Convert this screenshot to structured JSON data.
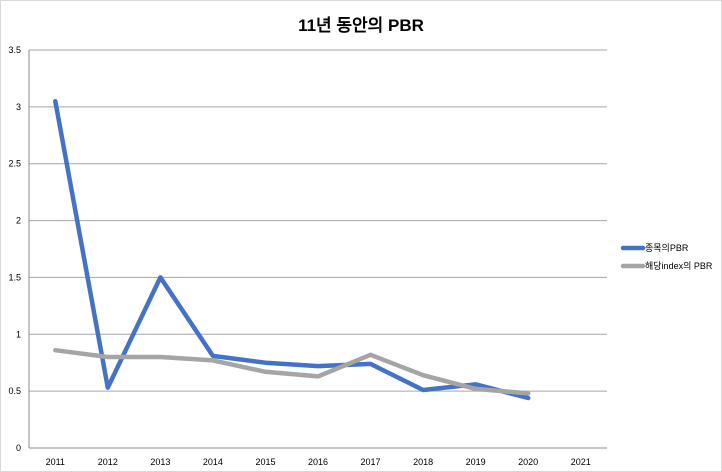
{
  "chart_data": {
    "type": "line",
    "title": "11년 동안의 PBR",
    "xlabel": "",
    "ylabel": "",
    "categories": [
      "2011",
      "2012",
      "2013",
      "2014",
      "2015",
      "2016",
      "2017",
      "2018",
      "2019",
      "2020",
      "2021"
    ],
    "y_ticks": [
      "0",
      "0.5",
      "1",
      "1.5",
      "2",
      "2.5",
      "3",
      "3.5"
    ],
    "ylim": [
      0,
      3.5
    ],
    "grid": "horizontal",
    "legend_position": "right",
    "series": [
      {
        "name": "종목의PBR",
        "color": "#4472c4",
        "values": [
          3.05,
          0.53,
          1.5,
          0.81,
          0.75,
          0.72,
          0.74,
          0.51,
          0.56,
          0.44,
          null
        ]
      },
      {
        "name": "해당index의 PBR",
        "color": "#a5a5a5",
        "values": [
          0.86,
          0.8,
          0.8,
          0.77,
          0.67,
          0.63,
          0.82,
          0.64,
          0.52,
          0.48,
          null
        ]
      }
    ]
  }
}
